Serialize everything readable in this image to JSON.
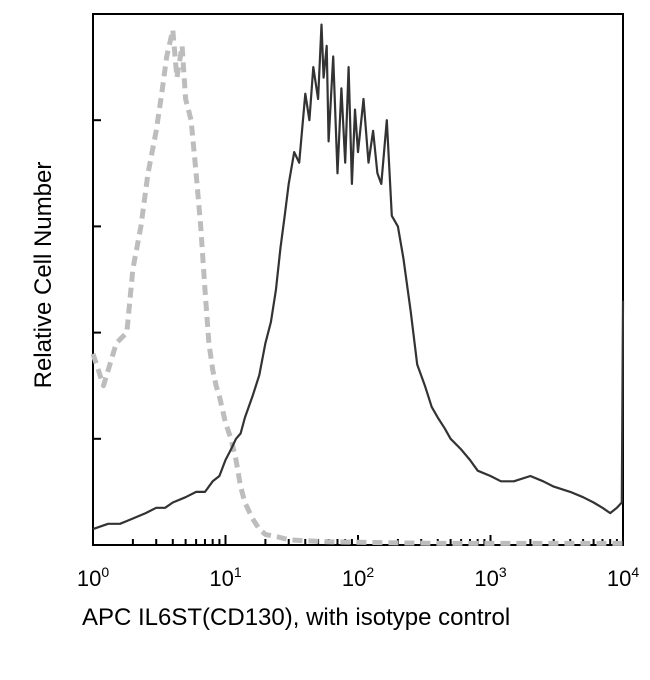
{
  "chart_data": {
    "type": "line",
    "xlabel": "APC IL6ST(CD130), with isotype control",
    "ylabel": "Relative Cell Number",
    "xscale": "log",
    "xlim": [
      1,
      10000
    ],
    "ylim": [
      0,
      100
    ],
    "x_ticks": [
      {
        "value": 1,
        "base": "10",
        "exp": "0"
      },
      {
        "value": 10,
        "base": "10",
        "exp": "1"
      },
      {
        "value": 100,
        "base": "10",
        "exp": "2"
      },
      {
        "value": 1000,
        "base": "10",
        "exp": "3"
      },
      {
        "value": 10000,
        "base": "10",
        "exp": "4"
      }
    ],
    "y_ticks": [
      0,
      20,
      40,
      60,
      80,
      100
    ],
    "y_tick_labels_shown": false,
    "series": [
      {
        "role": "isotype control",
        "style": "dashed",
        "color": "#bdbdbd",
        "x": [
          1.0,
          1.2,
          1.5,
          1.8,
          2.0,
          2.3,
          2.6,
          3.0,
          3.3,
          3.6,
          4.0,
          4.3,
          4.7,
          5.0,
          5.5,
          6.0,
          6.5,
          7.0,
          7.5,
          8.0,
          8.5,
          9.0,
          10.0,
          11.0,
          12.0,
          13.0,
          14.0,
          16.0,
          18.0,
          20.0,
          25.0,
          30.0,
          40.0,
          60.0,
          100.0,
          200.0,
          500.0,
          1000.0,
          2000.0,
          5000.0,
          10000.0
        ],
        "y": [
          36,
          30,
          38,
          40,
          52,
          60,
          70,
          78,
          85,
          92,
          97,
          88,
          94,
          84,
          80,
          70,
          60,
          48,
          38,
          33,
          30,
          28,
          23,
          20,
          16,
          11,
          8,
          5,
          3,
          2,
          1.5,
          1,
          0.8,
          0.6,
          0.5,
          0.4,
          0.3,
          0.3,
          0.3,
          0.3,
          0.3
        ]
      },
      {
        "role": "APC IL6ST(CD130)",
        "style": "solid",
        "color": "#333333",
        "x": [
          1.0,
          1.3,
          1.6,
          2.0,
          2.5,
          3.0,
          3.5,
          4.0,
          5.0,
          6.0,
          7.0,
          8.0,
          9.0,
          10.0,
          11.0,
          12.0,
          13.0,
          14.0,
          16.0,
          18.0,
          20.0,
          22.0,
          24.0,
          26.0,
          28.0,
          30.0,
          33.0,
          36.0,
          40.0,
          43.0,
          46.0,
          50.0,
          53.0,
          55.0,
          58.0,
          60.0,
          65.0,
          70.0,
          75.0,
          80.0,
          85.0,
          90.0,
          95.0,
          100.0,
          110.0,
          120.0,
          130.0,
          140.0,
          150.0,
          165.0,
          180.0,
          200.0,
          220.0,
          250.0,
          280.0,
          320.0,
          360.0,
          400.0,
          450.0,
          500.0,
          600.0,
          700.0,
          800.0,
          1000.0,
          1200.0,
          1500.0,
          2000.0,
          2500.0,
          3000.0,
          4000.0,
          5000.0,
          6000.0,
          7000.0,
          8000.0,
          9000.0,
          9800.0,
          10000.0
        ],
        "y": [
          3,
          4,
          4,
          5,
          6,
          7,
          7,
          8,
          9,
          10,
          10,
          12,
          13,
          16,
          18,
          20,
          21,
          24,
          28,
          32,
          38,
          42,
          48,
          56,
          62,
          68,
          74,
          72,
          85,
          80,
          90,
          84,
          98,
          88,
          94,
          76,
          92,
          70,
          86,
          72,
          90,
          68,
          82,
          74,
          84,
          72,
          78,
          70,
          68,
          80,
          62,
          60,
          54,
          44,
          34,
          30,
          26,
          24,
          22,
          20,
          18,
          16,
          14,
          13,
          12,
          12,
          13,
          12,
          11,
          10,
          9,
          8,
          7,
          6,
          7,
          8,
          46
        ]
      }
    ]
  }
}
